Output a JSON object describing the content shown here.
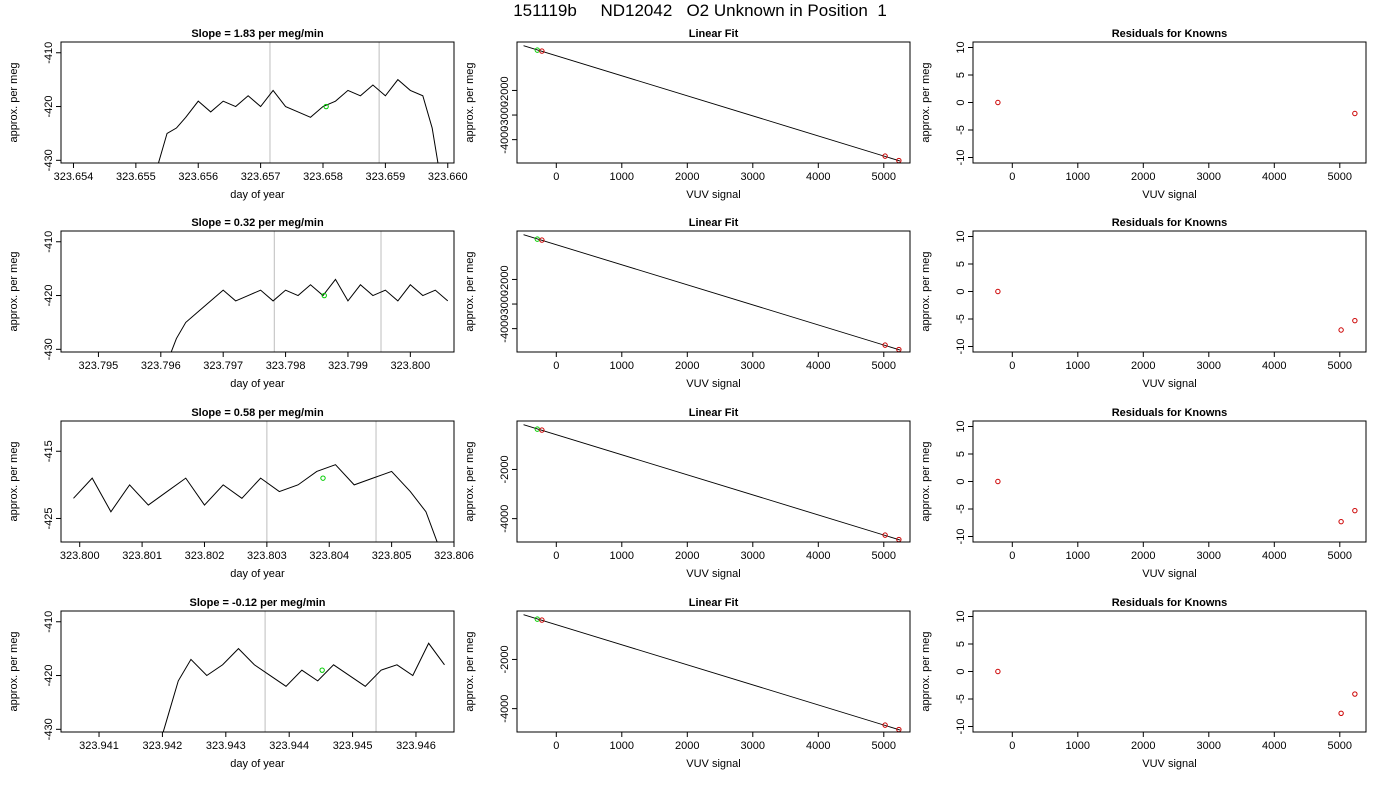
{
  "figure": {
    "title": "151119b     ND12042   O2 Unknown in Position  1"
  },
  "chart_data": [
    {
      "type": "line",
      "panel": "drift",
      "title": "Slope =  1.83  per meg/min",
      "xlabel": "day of year",
      "ylabel": "approx. per meg",
      "xlim": [
        323.6538,
        323.6601
      ],
      "ylim": [
        -430.5,
        -408
      ],
      "xticks": [
        323.654,
        323.655,
        323.656,
        323.657,
        323.658,
        323.659,
        323.66
      ],
      "xtick_labels": [
        "323.654",
        "323.655",
        "323.656",
        "323.657",
        "323.658",
        "323.659",
        "323.660"
      ],
      "yticks": [
        -430,
        -420,
        -410
      ],
      "ytick_labels": [
        "-430",
        "-420",
        "-410"
      ],
      "vlines": [
        323.65715,
        323.6589
      ],
      "series": [
        {
          "color": "#000000",
          "x": [
            323.65535,
            323.6555,
            323.65565,
            323.6558,
            323.656,
            323.6562,
            323.6564,
            323.6566,
            323.6568,
            323.657,
            323.6572,
            323.6574,
            323.6576,
            323.6578,
            323.658,
            323.6582,
            323.6584,
            323.6586,
            323.6588,
            323.659,
            323.6592,
            323.6594,
            323.6596,
            323.65975,
            323.65985
          ],
          "y": [
            -431,
            -425,
            -424,
            -422,
            -419,
            -421,
            -419,
            -420,
            -418,
            -420,
            -417,
            -420,
            -421,
            -422,
            -420,
            -419,
            -417,
            -418,
            -416,
            -418,
            -415,
            -417,
            -418,
            -424,
            -431
          ]
        }
      ],
      "points": [
        {
          "x": 323.65805,
          "y": -420,
          "color": "#00cc00"
        }
      ]
    },
    {
      "type": "scatter",
      "panel": "fit",
      "title": "Linear Fit",
      "xlabel": "VUV signal",
      "ylabel": "approx. per meg",
      "xlim": [
        -600,
        5400
      ],
      "ylim": [
        -4950,
        -30
      ],
      "xticks": [
        0,
        1000,
        2000,
        3000,
        4000,
        5000
      ],
      "xtick_labels": [
        "0",
        "1000",
        "2000",
        "3000",
        "4000",
        "5000"
      ],
      "yticks": [
        -4000,
        -3000,
        -2000
      ],
      "ytick_labels": [
        "-4000",
        "-3000",
        "-2000"
      ],
      "line": {
        "x": [
          -500,
          5250
        ],
        "y": [
          -180,
          -4870
        ]
      },
      "points": [
        {
          "x": -290,
          "y": -360,
          "color": "#00cc00"
        },
        {
          "x": -220,
          "y": -400,
          "color": "#cc0000"
        },
        {
          "x": 5020,
          "y": -4670,
          "color": "#cc0000"
        },
        {
          "x": 5230,
          "y": -4850,
          "color": "#cc0000"
        }
      ]
    },
    {
      "type": "scatter",
      "panel": "residuals",
      "title": "Residuals for Knowns",
      "xlabel": "VUV signal",
      "ylabel": "approx. per meg",
      "xlim": [
        -600,
        5400
      ],
      "ylim": [
        -11,
        11
      ],
      "xticks": [
        0,
        1000,
        2000,
        3000,
        4000,
        5000
      ],
      "xtick_labels": [
        "0",
        "1000",
        "2000",
        "3000",
        "4000",
        "5000"
      ],
      "yticks": [
        -10,
        -5,
        0,
        5,
        10
      ],
      "ytick_labels": [
        "-10",
        "-5",
        "0",
        "5",
        "10"
      ],
      "points": [
        {
          "x": -220,
          "y": 0,
          "color": "#cc0000"
        },
        {
          "x": 5230,
          "y": -2,
          "color": "#cc0000"
        }
      ]
    },
    {
      "type": "line",
      "panel": "drift",
      "title": "Slope =  0.32  per meg/min",
      "xlabel": "day of year",
      "ylabel": "approx. per meg",
      "xlim": [
        323.7944,
        323.8007
      ],
      "ylim": [
        -430.5,
        -408
      ],
      "xticks": [
        323.795,
        323.796,
        323.797,
        323.798,
        323.799,
        323.8
      ],
      "xtick_labels": [
        "323.795",
        "323.796",
        "323.797",
        "323.798",
        "323.799",
        "323.800"
      ],
      "yticks": [
        -430,
        -420,
        -410
      ],
      "ytick_labels": [
        "-430",
        "-420",
        "-410"
      ],
      "vlines": [
        323.79782,
        323.79953
      ],
      "series": [
        {
          "color": "#000000",
          "x": [
            323.79615,
            323.79625,
            323.7964,
            323.7966,
            323.7968,
            323.797,
            323.7972,
            323.7974,
            323.7976,
            323.7978,
            323.798,
            323.7982,
            323.7984,
            323.7986,
            323.7988,
            323.799,
            323.7992,
            323.7994,
            323.7996,
            323.7998,
            323.8,
            323.8002,
            323.8004,
            323.8006
          ],
          "y": [
            -431,
            -428,
            -425,
            -423,
            -421,
            -419,
            -421,
            -420,
            -419,
            -421,
            -419,
            -420,
            -418,
            -420,
            -417,
            -421,
            -418,
            -420,
            -419,
            -421,
            -418,
            -420,
            -419,
            -421
          ]
        }
      ],
      "points": [
        {
          "x": 323.79862,
          "y": -420,
          "color": "#00cc00"
        }
      ]
    },
    {
      "type": "scatter",
      "panel": "fit",
      "title": "Linear Fit",
      "xlabel": "VUV signal",
      "ylabel": "approx. per meg",
      "xlim": [
        -600,
        5400
      ],
      "ylim": [
        -4950,
        -30
      ],
      "xticks": [
        0,
        1000,
        2000,
        3000,
        4000,
        5000
      ],
      "xtick_labels": [
        "0",
        "1000",
        "2000",
        "3000",
        "4000",
        "5000"
      ],
      "yticks": [
        -4000,
        -3000,
        -2000
      ],
      "ytick_labels": [
        "-4000",
        "-3000",
        "-2000"
      ],
      "line": {
        "x": [
          -500,
          5250
        ],
        "y": [
          -180,
          -4870
        ]
      },
      "points": [
        {
          "x": -290,
          "y": -360,
          "color": "#00cc00"
        },
        {
          "x": -220,
          "y": -400,
          "color": "#cc0000"
        },
        {
          "x": 5020,
          "y": -4670,
          "color": "#cc0000"
        },
        {
          "x": 5230,
          "y": -4850,
          "color": "#cc0000"
        }
      ]
    },
    {
      "type": "scatter",
      "panel": "residuals",
      "title": "Residuals for Knowns",
      "xlabel": "VUV signal",
      "ylabel": "approx. per meg",
      "xlim": [
        -600,
        5400
      ],
      "ylim": [
        -11,
        11
      ],
      "xticks": [
        0,
        1000,
        2000,
        3000,
        4000,
        5000
      ],
      "xtick_labels": [
        "0",
        "1000",
        "2000",
        "3000",
        "4000",
        "5000"
      ],
      "yticks": [
        -10,
        -5,
        0,
        5,
        10
      ],
      "ytick_labels": [
        "-10",
        "-5",
        "0",
        "5",
        "10"
      ],
      "points": [
        {
          "x": -220,
          "y": 0,
          "color": "#cc0000"
        },
        {
          "x": 5020,
          "y": -7,
          "color": "#cc0000"
        },
        {
          "x": 5230,
          "y": -5.3,
          "color": "#cc0000"
        }
      ]
    },
    {
      "type": "line",
      "panel": "drift",
      "title": "Slope =  0.58  per meg/min",
      "xlabel": "day of year",
      "ylabel": "approx. per meg",
      "xlim": [
        323.7997,
        323.806
      ],
      "ylim": [
        -428.5,
        -410.5
      ],
      "xticks": [
        323.8,
        323.801,
        323.802,
        323.803,
        323.804,
        323.805,
        323.806
      ],
      "xtick_labels": [
        "323.800",
        "323.801",
        "323.802",
        "323.803",
        "323.804",
        "323.805",
        "323.806"
      ],
      "yticks": [
        -425,
        -415
      ],
      "ytick_labels": [
        "-425",
        "-415"
      ],
      "vlines": [
        323.803,
        323.80475
      ],
      "series": [
        {
          "color": "#000000",
          "x": [
            323.7999,
            323.8002,
            323.8005,
            323.8008,
            323.8011,
            323.8014,
            323.8017,
            323.802,
            323.8023,
            323.8026,
            323.8029,
            323.8032,
            323.8035,
            323.8038,
            323.8041,
            323.8044,
            323.8047,
            323.805,
            323.8053,
            323.80555,
            323.80575
          ],
          "y": [
            -422,
            -419,
            -424,
            -420,
            -423,
            -421,
            -419,
            -423,
            -420,
            -422,
            -419,
            -421,
            -420,
            -418,
            -417,
            -420,
            -419,
            -418,
            -421,
            -424,
            -429
          ]
        }
      ],
      "points": [
        {
          "x": 323.8039,
          "y": -419,
          "color": "#00cc00"
        }
      ]
    },
    {
      "type": "scatter",
      "panel": "fit",
      "title": "Linear Fit",
      "xlabel": "VUV signal",
      "ylabel": "approx. per meg",
      "xlim": [
        -600,
        5400
      ],
      "ylim": [
        -4950,
        -30
      ],
      "xticks": [
        0,
        1000,
        2000,
        3000,
        4000,
        5000
      ],
      "xtick_labels": [
        "0",
        "1000",
        "2000",
        "3000",
        "4000",
        "5000"
      ],
      "yticks": [
        -4000,
        -2000
      ],
      "ytick_labels": [
        "-4000",
        "-2000"
      ],
      "line": {
        "x": [
          -500,
          5250
        ],
        "y": [
          -180,
          -4870
        ]
      },
      "points": [
        {
          "x": -290,
          "y": -360,
          "color": "#00cc00"
        },
        {
          "x": -220,
          "y": -400,
          "color": "#cc0000"
        },
        {
          "x": 5020,
          "y": -4670,
          "color": "#cc0000"
        },
        {
          "x": 5230,
          "y": -4850,
          "color": "#cc0000"
        }
      ]
    },
    {
      "type": "scatter",
      "panel": "residuals",
      "title": "Residuals for Knowns",
      "xlabel": "VUV signal",
      "ylabel": "approx. per meg",
      "xlim": [
        -600,
        5400
      ],
      "ylim": [
        -11,
        11
      ],
      "xticks": [
        0,
        1000,
        2000,
        3000,
        4000,
        5000
      ],
      "xtick_labels": [
        "0",
        "1000",
        "2000",
        "3000",
        "4000",
        "5000"
      ],
      "yticks": [
        -10,
        -5,
        0,
        5,
        10
      ],
      "ytick_labels": [
        "-10",
        "-5",
        "0",
        "5",
        "10"
      ],
      "points": [
        {
          "x": -220,
          "y": 0,
          "color": "#cc0000"
        },
        {
          "x": 5020,
          "y": -7.3,
          "color": "#cc0000"
        },
        {
          "x": 5230,
          "y": -5.3,
          "color": "#cc0000"
        }
      ]
    },
    {
      "type": "line",
      "panel": "drift",
      "title": "Slope =  -0.12  per meg/min",
      "xlabel": "day of year",
      "ylabel": "approx. per meg",
      "xlim": [
        323.9404,
        323.9466
      ],
      "ylim": [
        -430.5,
        -408
      ],
      "xticks": [
        323.941,
        323.942,
        323.943,
        323.944,
        323.945,
        323.946
      ],
      "xtick_labels": [
        "323.941",
        "323.942",
        "323.943",
        "323.944",
        "323.945",
        "323.946"
      ],
      "yticks": [
        -430,
        -420,
        -410
      ],
      "ytick_labels": [
        "-430",
        "-420",
        "-410"
      ],
      "vlines": [
        323.94362,
        323.94537
      ],
      "series": [
        {
          "color": "#000000",
          "x": [
            323.942,
            323.9421,
            323.94225,
            323.94245,
            323.9427,
            323.94295,
            323.9432,
            323.94345,
            323.9437,
            323.94395,
            323.9442,
            323.94445,
            323.9447,
            323.94495,
            323.9452,
            323.94545,
            323.9457,
            323.94595,
            323.9462,
            323.94645
          ],
          "y": [
            -431,
            -427,
            -421,
            -417,
            -420,
            -418,
            -415,
            -418,
            -420,
            -422,
            -419,
            -421,
            -418,
            -420,
            -422,
            -419,
            -418,
            -420,
            -414,
            -418
          ]
        }
      ],
      "points": [
        {
          "x": 323.94452,
          "y": -419,
          "color": "#00cc00"
        }
      ]
    },
    {
      "type": "scatter",
      "panel": "fit",
      "title": "Linear Fit",
      "xlabel": "VUV signal",
      "ylabel": "approx. per meg",
      "xlim": [
        -600,
        5400
      ],
      "ylim": [
        -4950,
        -30
      ],
      "xticks": [
        0,
        1000,
        2000,
        3000,
        4000,
        5000
      ],
      "xtick_labels": [
        "0",
        "1000",
        "2000",
        "3000",
        "4000",
        "5000"
      ],
      "yticks": [
        -4000,
        -2000
      ],
      "ytick_labels": [
        "-4000",
        "-2000"
      ],
      "line": {
        "x": [
          -500,
          5250
        ],
        "y": [
          -180,
          -4870
        ]
      },
      "points": [
        {
          "x": -290,
          "y": -360,
          "color": "#00cc00"
        },
        {
          "x": -220,
          "y": -400,
          "color": "#cc0000"
        },
        {
          "x": 5020,
          "y": -4670,
          "color": "#cc0000"
        },
        {
          "x": 5230,
          "y": -4850,
          "color": "#cc0000"
        }
      ]
    },
    {
      "type": "scatter",
      "panel": "residuals",
      "title": "Residuals for Knowns",
      "xlabel": "VUV signal",
      "ylabel": "approx. per meg",
      "xlim": [
        -600,
        5400
      ],
      "ylim": [
        -11,
        11
      ],
      "xticks": [
        0,
        1000,
        2000,
        3000,
        4000,
        5000
      ],
      "xtick_labels": [
        "0",
        "1000",
        "2000",
        "3000",
        "4000",
        "5000"
      ],
      "yticks": [
        -10,
        -5,
        0,
        5,
        10
      ],
      "ytick_labels": [
        "-10",
        "-5",
        "0",
        "5",
        "10"
      ],
      "points": [
        {
          "x": -220,
          "y": 0,
          "color": "#cc0000"
        },
        {
          "x": 5020,
          "y": -7.6,
          "color": "#cc0000"
        },
        {
          "x": 5230,
          "y": -4.1,
          "color": "#cc0000"
        }
      ]
    }
  ]
}
